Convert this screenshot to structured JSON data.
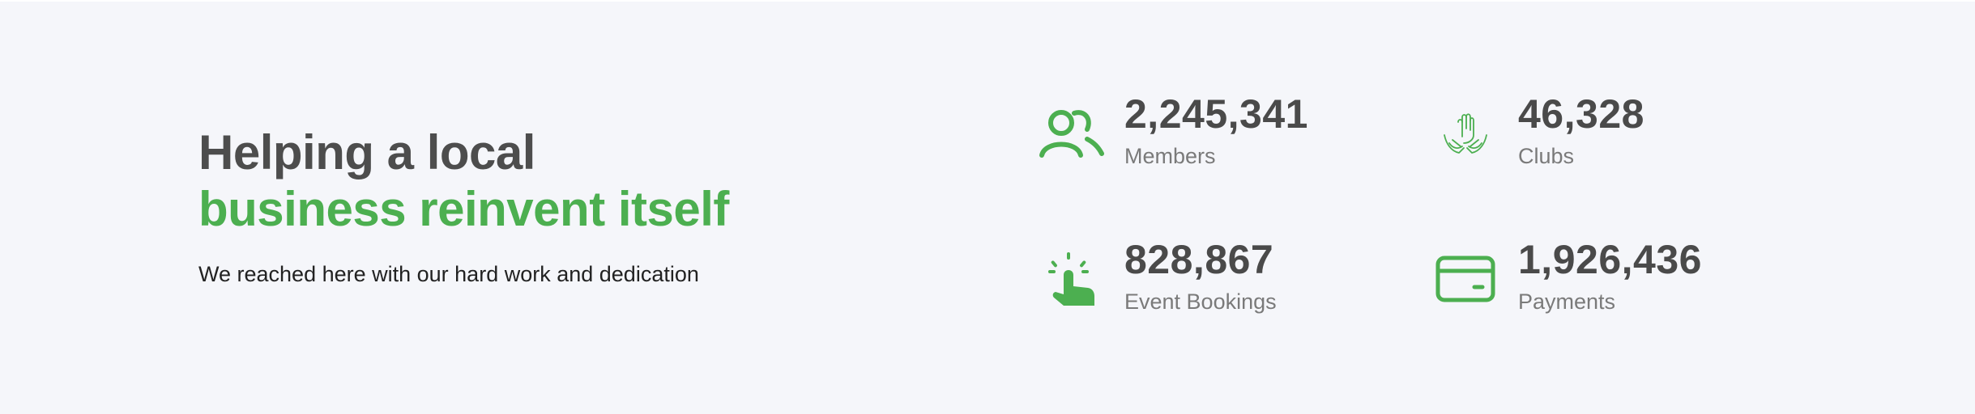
{
  "hero": {
    "title_line1": "Helping a local",
    "title_line2": "business reinvent itself",
    "subtitle": "We reached here with our hard work and dedication"
  },
  "stats": [
    {
      "value": "2,245,341",
      "label": "Members",
      "icon": "members-icon"
    },
    {
      "value": "46,328",
      "label": "Clubs",
      "icon": "hands-icon"
    },
    {
      "value": "828,867",
      "label": "Event Bookings",
      "icon": "tap-pointer-icon"
    },
    {
      "value": "1,926,436",
      "label": "Payments",
      "icon": "credit-card-icon"
    }
  ],
  "colors": {
    "accent": "#4caf50",
    "heading": "#4d4d4d",
    "background": "#f5f6fa",
    "muted": "#7a7a7a"
  }
}
